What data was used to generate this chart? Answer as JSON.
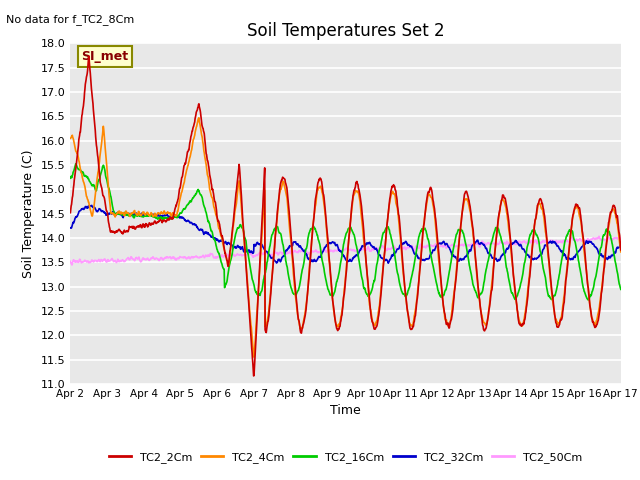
{
  "title": "Soil Temperatures Set 2",
  "subtitle": "No data for f_TC2_8Cm",
  "xlabel": "Time",
  "ylabel": "Soil Temperature (C)",
  "ylim": [
    11.0,
    18.0
  ],
  "yticks": [
    11.0,
    11.5,
    12.0,
    12.5,
    13.0,
    13.5,
    14.0,
    14.5,
    15.0,
    15.5,
    16.0,
    16.5,
    17.0,
    17.5,
    18.0
  ],
  "xtick_labels": [
    "Apr 2",
    "Apr 3",
    "Apr 4",
    "Apr 5",
    "Apr 6",
    "Apr 7",
    "Apr 8",
    "Apr 9",
    "Apr 10",
    "Apr 11",
    "Apr 12",
    "Apr 13",
    "Apr 14",
    "Apr 15",
    "Apr 16",
    "Apr 17"
  ],
  "legend_labels": [
    "TC2_2Cm",
    "TC2_4Cm",
    "TC2_16Cm",
    "TC2_32Cm",
    "TC2_50Cm"
  ],
  "colors": {
    "TC2_2Cm": "#cc0000",
    "TC2_4Cm": "#ff8800",
    "TC2_16Cm": "#00cc00",
    "TC2_32Cm": "#0000cc",
    "TC2_50Cm": "#ff99ff"
  },
  "bg_color": "#e8e8e8",
  "annotation_box": {
    "text": "SI_met",
    "bg": "#ffffcc",
    "border": "#888800",
    "text_color": "#880000"
  }
}
